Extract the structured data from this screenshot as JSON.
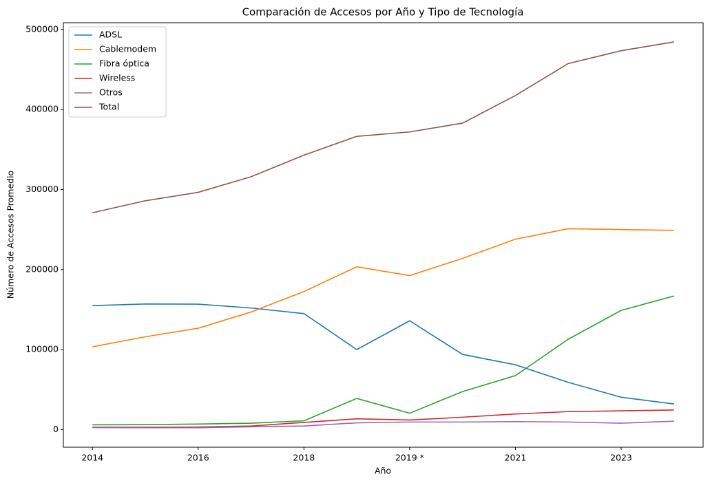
{
  "chart_data": {
    "type": "line",
    "title": "Comparación de Accesos por Año y Tipo de Tecnología",
    "xlabel": "Año",
    "ylabel": "Número de Accesos Promedio",
    "categories": [
      "2014",
      null,
      "2016",
      null,
      "2018",
      null,
      "2019 *",
      null,
      "2021",
      null,
      "2023",
      null
    ],
    "series": [
      {
        "name": "ADSL",
        "color": "#1f77b4",
        "values": [
          155000,
          157000,
          156800,
          152000,
          145000,
          100000,
          136000,
          94000,
          81000,
          59000,
          40500,
          32000
        ]
      },
      {
        "name": "Cablemodem",
        "color": "#ff7f0e",
        "values": [
          103500,
          116000,
          126700,
          147000,
          172500,
          203500,
          192500,
          214000,
          238000,
          251000,
          250000,
          249000
        ]
      },
      {
        "name": "Fibra óptica",
        "color": "#2ca02c",
        "values": [
          6000,
          6200,
          7000,
          8000,
          11000,
          39000,
          20500,
          47500,
          67500,
          113000,
          149000,
          167000
        ]
      },
      {
        "name": "Wireless",
        "color": "#d62728",
        "values": [
          3000,
          3000,
          3200,
          4500,
          9000,
          13500,
          12000,
          15500,
          19500,
          22500,
          23500,
          24500
        ]
      },
      {
        "name": "Otros",
        "color": "#9467bd",
        "values": [
          2500,
          2300,
          2300,
          3500,
          4500,
          8500,
          9500,
          9500,
          10000,
          9500,
          8000,
          10500
        ]
      },
      {
        "name": "Total",
        "color": "#8c564b",
        "values": [
          271000,
          286000,
          296500,
          316000,
          343000,
          366500,
          372000,
          383000,
          417500,
          457500,
          473500,
          484500
        ]
      }
    ],
    "ylim": [
      -22000,
      508500
    ],
    "yticks": [
      0,
      100000,
      200000,
      300000,
      400000,
      500000
    ],
    "legend": "upper left",
    "grid": false
  }
}
